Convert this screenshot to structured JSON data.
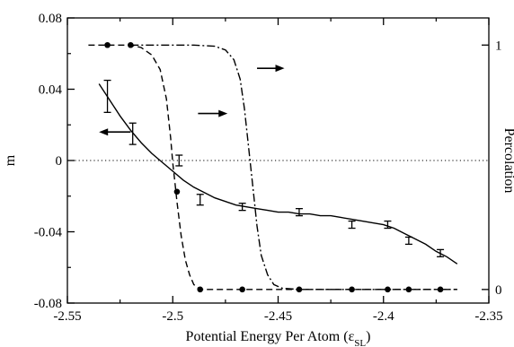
{
  "chart_data": {
    "type": "line",
    "xlabel": "Potential Energy Per Atom (ε",
    "xlabel_sub": "SL",
    "xlabel_close": ")",
    "ylabel_left": "m",
    "ylabel_right": "Percolation",
    "xlim": [
      -2.55,
      -2.35
    ],
    "ylim_left": [
      -0.08,
      0.08
    ],
    "ylim_right": [
      -0.0556,
      1.111
    ],
    "x_ticks": [
      -2.55,
      -2.5,
      -2.45,
      -2.4,
      -2.35
    ],
    "x_tick_labels": [
      "-2.55",
      "-2.5",
      "-2.45",
      "-2.4",
      "-2.35"
    ],
    "y_left_ticks": [
      -0.08,
      -0.04,
      0,
      0.04,
      0.08
    ],
    "y_left_tick_labels": [
      "-0.08",
      "-0.04",
      "0",
      "0.04",
      "0.08"
    ],
    "y_right_ticks": [
      0,
      1
    ],
    "y_right_tick_labels": [
      "0",
      "1"
    ],
    "zero_line": {
      "y": 0,
      "style": "dotted"
    },
    "series": [
      {
        "axis": "left",
        "style": "errorbar",
        "points": [
          {
            "x": -2.531,
            "y": 0.036,
            "err": 0.009
          },
          {
            "x": -2.519,
            "y": 0.015,
            "err": 0.006
          },
          {
            "x": -2.497,
            "y": 0.0,
            "err": 0.003
          },
          {
            "x": -2.487,
            "y": -0.022,
            "err": 0.003
          },
          {
            "x": -2.467,
            "y": -0.026,
            "err": 0.002
          },
          {
            "x": -2.44,
            "y": -0.029,
            "err": 0.002
          },
          {
            "x": -2.415,
            "y": -0.036,
            "err": 0.002
          },
          {
            "x": -2.398,
            "y": -0.036,
            "err": 0.002
          },
          {
            "x": -2.388,
            "y": -0.045,
            "err": 0.002
          },
          {
            "x": -2.373,
            "y": -0.052,
            "err": 0.002
          }
        ]
      },
      {
        "axis": "left",
        "style": "solid",
        "points": [
          [
            -2.535,
            0.043
          ],
          [
            -2.53,
            0.034
          ],
          [
            -2.525,
            0.025
          ],
          [
            -2.52,
            0.017
          ],
          [
            -2.515,
            0.01
          ],
          [
            -2.51,
            0.004
          ],
          [
            -2.505,
            -0.001
          ],
          [
            -2.5,
            -0.006
          ],
          [
            -2.495,
            -0.011
          ],
          [
            -2.49,
            -0.015
          ],
          [
            -2.485,
            -0.018
          ],
          [
            -2.48,
            -0.021
          ],
          [
            -2.475,
            -0.023
          ],
          [
            -2.47,
            -0.025
          ],
          [
            -2.465,
            -0.026
          ],
          [
            -2.46,
            -0.027
          ],
          [
            -2.455,
            -0.028
          ],
          [
            -2.45,
            -0.029
          ],
          [
            -2.445,
            -0.029
          ],
          [
            -2.44,
            -0.03
          ],
          [
            -2.435,
            -0.03
          ],
          [
            -2.43,
            -0.031
          ],
          [
            -2.425,
            -0.031
          ],
          [
            -2.42,
            -0.032
          ],
          [
            -2.415,
            -0.033
          ],
          [
            -2.41,
            -0.034
          ],
          [
            -2.405,
            -0.035
          ],
          [
            -2.4,
            -0.036
          ],
          [
            -2.395,
            -0.038
          ],
          [
            -2.39,
            -0.041
          ],
          [
            -2.385,
            -0.044
          ],
          [
            -2.38,
            -0.047
          ],
          [
            -2.375,
            -0.051
          ],
          [
            -2.37,
            -0.054
          ],
          [
            -2.365,
            -0.058
          ]
        ]
      },
      {
        "axis": "right",
        "style": "dashed-markers",
        "points": [
          [
            -2.54,
            1.0
          ],
          [
            -2.531,
            1.0
          ],
          [
            -2.52,
            1.0
          ],
          [
            -2.515,
            0.99
          ],
          [
            -2.51,
            0.96
          ],
          [
            -2.506,
            0.9
          ],
          [
            -2.503,
            0.78
          ],
          [
            -2.501,
            0.62
          ],
          [
            -2.5,
            0.52
          ],
          [
            -2.499,
            0.44
          ],
          [
            -2.498,
            0.36
          ],
          [
            -2.496,
            0.22
          ],
          [
            -2.494,
            0.12
          ],
          [
            -2.492,
            0.06
          ],
          [
            -2.49,
            0.02
          ],
          [
            -2.487,
            0.0
          ],
          [
            -2.47,
            0.0
          ],
          [
            -2.44,
            0.0
          ],
          [
            -2.415,
            0.0
          ],
          [
            -2.398,
            0.0
          ],
          [
            -2.388,
            0.0
          ],
          [
            -2.373,
            0.0
          ],
          [
            -2.365,
            0.0
          ]
        ],
        "markers": [
          [
            -2.531,
            1.0
          ],
          [
            -2.52,
            1.0
          ],
          [
            -2.498,
            0.4
          ],
          [
            -2.487,
            0.0
          ],
          [
            -2.467,
            0.0
          ],
          [
            -2.44,
            0.0
          ],
          [
            -2.415,
            0.0
          ],
          [
            -2.398,
            0.0
          ],
          [
            -2.388,
            0.0
          ],
          [
            -2.373,
            0.0
          ]
        ]
      },
      {
        "axis": "right",
        "style": "dashdot",
        "points": [
          [
            -2.52,
            1.0
          ],
          [
            -2.49,
            1.0
          ],
          [
            -2.48,
            0.995
          ],
          [
            -2.475,
            0.98
          ],
          [
            -2.471,
            0.94
          ],
          [
            -2.468,
            0.86
          ],
          [
            -2.466,
            0.74
          ],
          [
            -2.464,
            0.58
          ],
          [
            -2.462,
            0.42
          ],
          [
            -2.46,
            0.26
          ],
          [
            -2.458,
            0.14
          ],
          [
            -2.455,
            0.06
          ],
          [
            -2.452,
            0.02
          ],
          [
            -2.448,
            0.005
          ],
          [
            -2.44,
            0.0
          ],
          [
            -2.365,
            0.0
          ]
        ]
      }
    ],
    "arrows": [
      {
        "from": [
          -2.52,
          0.016
        ],
        "to": [
          -2.535,
          0.016
        ],
        "axis": "left"
      },
      {
        "from": [
          -2.488,
          0.72
        ],
        "to": [
          -2.474,
          0.72
        ],
        "axis": "right"
      },
      {
        "from": [
          -2.46,
          0.905
        ],
        "to": [
          -2.447,
          0.905
        ],
        "axis": "right"
      }
    ],
    "grid": false,
    "legend": "none"
  }
}
